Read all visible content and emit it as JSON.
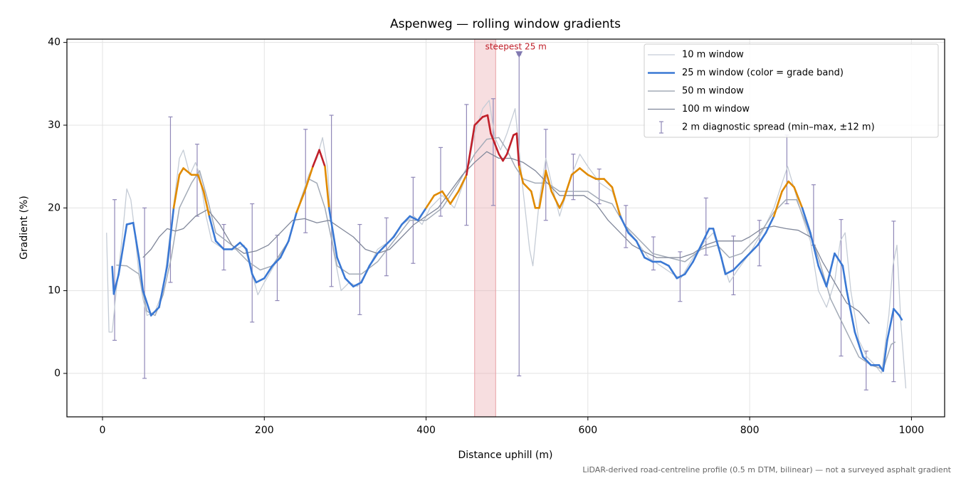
{
  "chart_data": {
    "type": "line",
    "title": "Aspenweg — rolling window gradients",
    "x_label": "Distance uphill (m)",
    "y_label": "Gradient (%)",
    "footnote": "LiDAR-derived road-centreline profile (0.5 m DTM, bilinear) — not a surveyed asphalt gradient",
    "xlim": [
      -44,
      1041
    ],
    "ylim": [
      -5.25,
      40.4
    ],
    "xticks": [
      0,
      200,
      400,
      600,
      800,
      1000
    ],
    "yticks": [
      0,
      10,
      20,
      30,
      40
    ],
    "grid": true,
    "legend": "upper right",
    "highlight": {
      "x": [
        460,
        486
      ],
      "color": "#e8a0a6"
    },
    "annotation": {
      "text": "steepest 25 m",
      "x": 511,
      "y": 39.2,
      "color": "#c0202a"
    },
    "peak_marker": {
      "x": 515,
      "y": 38.5,
      "color": "#8078b0"
    },
    "series": [
      {
        "name": "10 m window",
        "color": "#c5ccd6",
        "width": 1.3,
        "x": [
          5,
          8,
          12,
          18,
          25,
          30,
          35,
          40,
          45,
          50,
          55,
          65,
          75,
          85,
          95,
          100,
          108,
          115,
          120,
          128,
          135,
          150,
          165,
          175,
          185,
          192,
          200,
          215,
          230,
          245,
          255,
          265,
          272,
          278,
          285,
          295,
          305,
          315,
          325,
          340,
          355,
          370,
          385,
          395,
          405,
          420,
          435,
          450,
          460,
          470,
          478,
          485,
          492,
          500,
          510,
          515,
          520,
          528,
          532,
          540,
          548,
          555,
          565,
          580,
          590,
          600,
          615,
          630,
          645,
          660,
          675,
          690,
          705,
          715,
          730,
          745,
          755,
          765,
          775,
          785,
          800,
          815,
          830,
          840,
          847,
          853,
          865,
          875,
          885,
          895,
          905,
          912,
          918,
          925,
          935,
          945,
          955,
          963,
          972,
          977,
          982,
          987,
          993
        ],
        "values": [
          17,
          5,
          5,
          11,
          17,
          22.3,
          21,
          17,
          12,
          9,
          7,
          7.5,
          10,
          18,
          26,
          27,
          24,
          25.5,
          24,
          19,
          16,
          15,
          15,
          15.5,
          12,
          9.5,
          11,
          13.5,
          16,
          21,
          24,
          26,
          28.5,
          25,
          15,
          10,
          11,
          10.5,
          12,
          15,
          16,
          18,
          19,
          18,
          20,
          21.5,
          20,
          24,
          29,
          32,
          33,
          28.5,
          27,
          29,
          32,
          27,
          22,
          15,
          13,
          21,
          26,
          23,
          19,
          24,
          26.5,
          25,
          23,
          22,
          18,
          16,
          14,
          13,
          12,
          11.5,
          14,
          16,
          17,
          14,
          11,
          12.5,
          14.5,
          17,
          20,
          23,
          25,
          23,
          19,
          16,
          10,
          8,
          11,
          16,
          17,
          10,
          4,
          2,
          1,
          0,
          7,
          13,
          15.5,
          6,
          -1.8
        ]
      },
      {
        "name": "25 m window (color = grade band)",
        "color": "#3a78d4",
        "width": 2.6,
        "grade_bands": [
          {
            "max": 20,
            "color": "#3a78d4"
          },
          {
            "max": 25,
            "color": "#e08a00"
          },
          {
            "color": "#c0202a"
          }
        ],
        "x": [
          12,
          14,
          20,
          30,
          38,
          45,
          50,
          60,
          70,
          80,
          88,
          95,
          100,
          110,
          118,
          125,
          132,
          140,
          150,
          160,
          170,
          178,
          185,
          190,
          200,
          210,
          220,
          230,
          240,
          250,
          260,
          268,
          275,
          280,
          290,
          300,
          310,
          320,
          330,
          340,
          350,
          360,
          370,
          380,
          390,
          400,
          410,
          420,
          430,
          440,
          450,
          460,
          470,
          476,
          480,
          490,
          495,
          500,
          508,
          512,
          515,
          520,
          530,
          535,
          540,
          548,
          555,
          565,
          570,
          580,
          590,
          600,
          610,
          620,
          630,
          640,
          650,
          660,
          670,
          680,
          690,
          700,
          710,
          720,
          730,
          740,
          750,
          755,
          765,
          770,
          780,
          790,
          800,
          810,
          820,
          830,
          840,
          848,
          855,
          865,
          875,
          885,
          895,
          905,
          915,
          920,
          930,
          940,
          950,
          960,
          965,
          970,
          978,
          985,
          988
        ],
        "values": [
          12.9,
          9.6,
          12,
          18,
          18.2,
          14,
          10,
          7,
          8,
          13,
          20,
          24,
          24.8,
          24,
          24,
          22,
          19,
          16,
          15,
          15,
          15.8,
          15,
          12,
          11,
          11.5,
          13,
          14,
          16,
          19.5,
          22,
          25,
          27,
          25,
          20,
          14,
          11.5,
          10.5,
          11,
          13,
          14.5,
          15.5,
          16.5,
          18,
          19,
          18.5,
          20,
          21.5,
          22,
          20.5,
          22,
          24,
          30,
          31,
          31.2,
          29,
          26.5,
          25.7,
          26.5,
          28.8,
          29,
          25,
          23,
          22,
          20,
          20,
          24.5,
          22,
          20,
          21,
          24,
          24.8,
          24,
          23.5,
          23.5,
          22.5,
          19,
          17,
          16,
          14,
          13.5,
          13.5,
          13,
          11.5,
          12,
          13.5,
          15.5,
          17.5,
          17.5,
          14,
          12,
          12.5,
          13.5,
          14.5,
          15.5,
          17,
          19,
          22,
          23.2,
          22.5,
          20,
          17,
          13,
          10.5,
          14.5,
          13,
          10,
          5,
          2,
          1,
          1,
          0.3,
          4,
          7.8,
          7,
          6.5
        ]
      },
      {
        "name": "50 m window",
        "color": "#a3abb7",
        "width": 1.5,
        "x": [
          17,
          30,
          45,
          55,
          65,
          75,
          85,
          95,
          110,
          120,
          130,
          140,
          160,
          180,
          195,
          210,
          230,
          245,
          255,
          265,
          275,
          290,
          305,
          320,
          340,
          360,
          380,
          400,
          420,
          440,
          460,
          475,
          490,
          500,
          510,
          520,
          535,
          550,
          565,
          580,
          600,
          615,
          630,
          645,
          660,
          680,
          700,
          720,
          740,
          760,
          775,
          790,
          810,
          830,
          845,
          858,
          870,
          885,
          900,
          910,
          920,
          935,
          950,
          965,
          975,
          980
        ],
        "values": [
          13.1,
          13,
          12,
          7.5,
          7,
          9.5,
          14,
          20,
          23,
          24.5,
          21,
          17,
          15.5,
          13.5,
          12.5,
          13,
          16,
          21,
          23.5,
          23,
          20,
          13,
          12,
          12,
          13.5,
          16,
          18.5,
          18.5,
          20,
          23,
          26.5,
          28.3,
          28.5,
          27,
          25,
          23.5,
          23,
          23,
          22,
          22,
          22,
          21,
          20.5,
          18,
          16.5,
          14.5,
          14,
          13.5,
          15,
          15.5,
          14,
          14.5,
          16.5,
          19.5,
          21,
          21,
          18,
          14,
          9,
          7,
          5,
          2,
          1,
          0.5,
          3.5,
          3.8
        ]
      },
      {
        "name": "100 m window",
        "color": "#80879a",
        "width": 1.3,
        "x": [
          50,
          60,
          70,
          80,
          90,
          100,
          115,
          130,
          145,
          160,
          175,
          190,
          205,
          220,
          235,
          250,
          265,
          280,
          295,
          310,
          325,
          340,
          355,
          370,
          385,
          400,
          415,
          430,
          445,
          460,
          475,
          490,
          505,
          520,
          535,
          550,
          565,
          580,
          595,
          610,
          625,
          640,
          655,
          670,
          685,
          700,
          715,
          730,
          745,
          760,
          775,
          790,
          800,
          815,
          830,
          845,
          860,
          875,
          890,
          905,
          920,
          935,
          948
        ],
        "values": [
          14,
          15,
          16.5,
          17.5,
          17.2,
          17.5,
          19,
          19.8,
          18,
          15.5,
          14.5,
          14.8,
          15.5,
          17,
          18.5,
          18.7,
          18.2,
          18.5,
          17.5,
          16.5,
          15,
          14.5,
          15,
          16.5,
          18,
          19,
          20,
          22,
          24,
          25.5,
          26.8,
          26,
          26,
          25.5,
          24.5,
          23,
          21.5,
          21.5,
          21.5,
          20.5,
          18.5,
          17,
          15.5,
          14.7,
          14,
          14,
          14,
          14.5,
          15.5,
          16,
          16,
          16,
          16.5,
          17.5,
          17.8,
          17.5,
          17.3,
          16.5,
          13.5,
          11,
          8.5,
          7.5,
          6
        ]
      }
    ],
    "errorbars": {
      "name": "2 m diagnostic spread (min–max, ±12 m)",
      "color": "#9088b8",
      "x": [
        15,
        52,
        84,
        117,
        150,
        185,
        216,
        251,
        283,
        318,
        351,
        384,
        418,
        450,
        483,
        515,
        548,
        582,
        614,
        647,
        681,
        714,
        746,
        780,
        812,
        846,
        879,
        913,
        944,
        978
      ],
      "low": [
        4,
        -0.6,
        11,
        19,
        12.5,
        6.2,
        8.8,
        17,
        10.5,
        7.1,
        11.8,
        13.3,
        19,
        17.9,
        20.3,
        -0.3,
        18.5,
        21,
        20.5,
        15.2,
        12.5,
        8.7,
        14.3,
        9.5,
        13,
        20.5,
        15.5,
        2.1,
        -2,
        -1
      ],
      "high": [
        21,
        20,
        31,
        27.7,
        18,
        20.5,
        16.7,
        29.5,
        31.2,
        18,
        18.8,
        23.7,
        27.3,
        32.5,
        33.2,
        38.5,
        29.5,
        26.5,
        24.7,
        20.3,
        16.5,
        14.7,
        21.2,
        16.6,
        18.5,
        28.8,
        22.8,
        18.6,
        2.7,
        18.4
      ]
    }
  }
}
